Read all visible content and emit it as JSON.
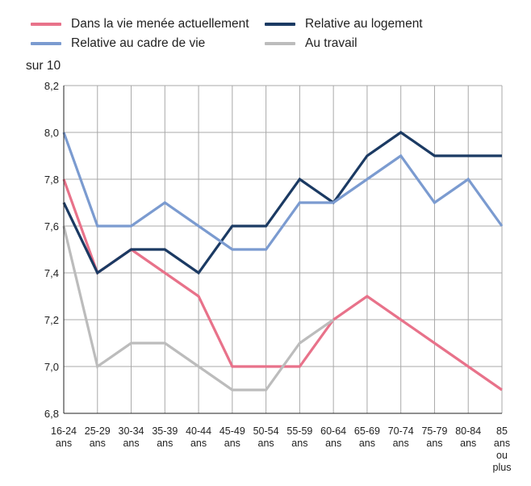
{
  "chart_data": {
    "type": "line",
    "ylabel": "sur 10",
    "ylim": [
      6.8,
      8.2
    ],
    "yticks": [
      "6,8",
      "7,0",
      "7,2",
      "7,4",
      "7,6",
      "7,8",
      "8,0",
      "8,2"
    ],
    "categories": [
      "16-24 ans",
      "25-29 ans",
      "30-34 ans",
      "35-39 ans",
      "40-44 ans",
      "45-49 ans",
      "50-54 ans",
      "55-59 ans",
      "60-64 ans",
      "65-69 ans",
      "70-74 ans",
      "75-79 ans",
      "80-84 ans",
      "85 ans ou plus"
    ],
    "grid": true,
    "legend_position": "top",
    "series": [
      {
        "name": "Dans la vie menée actuellement",
        "color": "#e8728a",
        "values": [
          7.8,
          7.4,
          7.5,
          7.4,
          7.3,
          7.0,
          7.0,
          7.0,
          7.2,
          7.3,
          7.2,
          7.1,
          7.0,
          6.9
        ]
      },
      {
        "name": "Relative au logement",
        "color": "#1b3a63",
        "values": [
          7.7,
          7.4,
          7.5,
          7.5,
          7.4,
          7.6,
          7.6,
          7.8,
          7.7,
          7.9,
          8.0,
          7.9,
          7.9,
          7.9
        ]
      },
      {
        "name": "Relative au cadre de vie",
        "color": "#7b9bd0",
        "values": [
          8.0,
          7.6,
          7.6,
          7.7,
          7.6,
          7.5,
          7.5,
          7.7,
          7.7,
          7.8,
          7.9,
          7.7,
          7.8,
          7.6
        ]
      },
      {
        "name": "Au travail",
        "color": "#bcbcbc",
        "values": [
          7.6,
          7.0,
          7.1,
          7.1,
          7.0,
          6.9,
          6.9,
          7.1,
          7.2,
          null,
          null,
          null,
          null,
          null
        ]
      }
    ]
  }
}
